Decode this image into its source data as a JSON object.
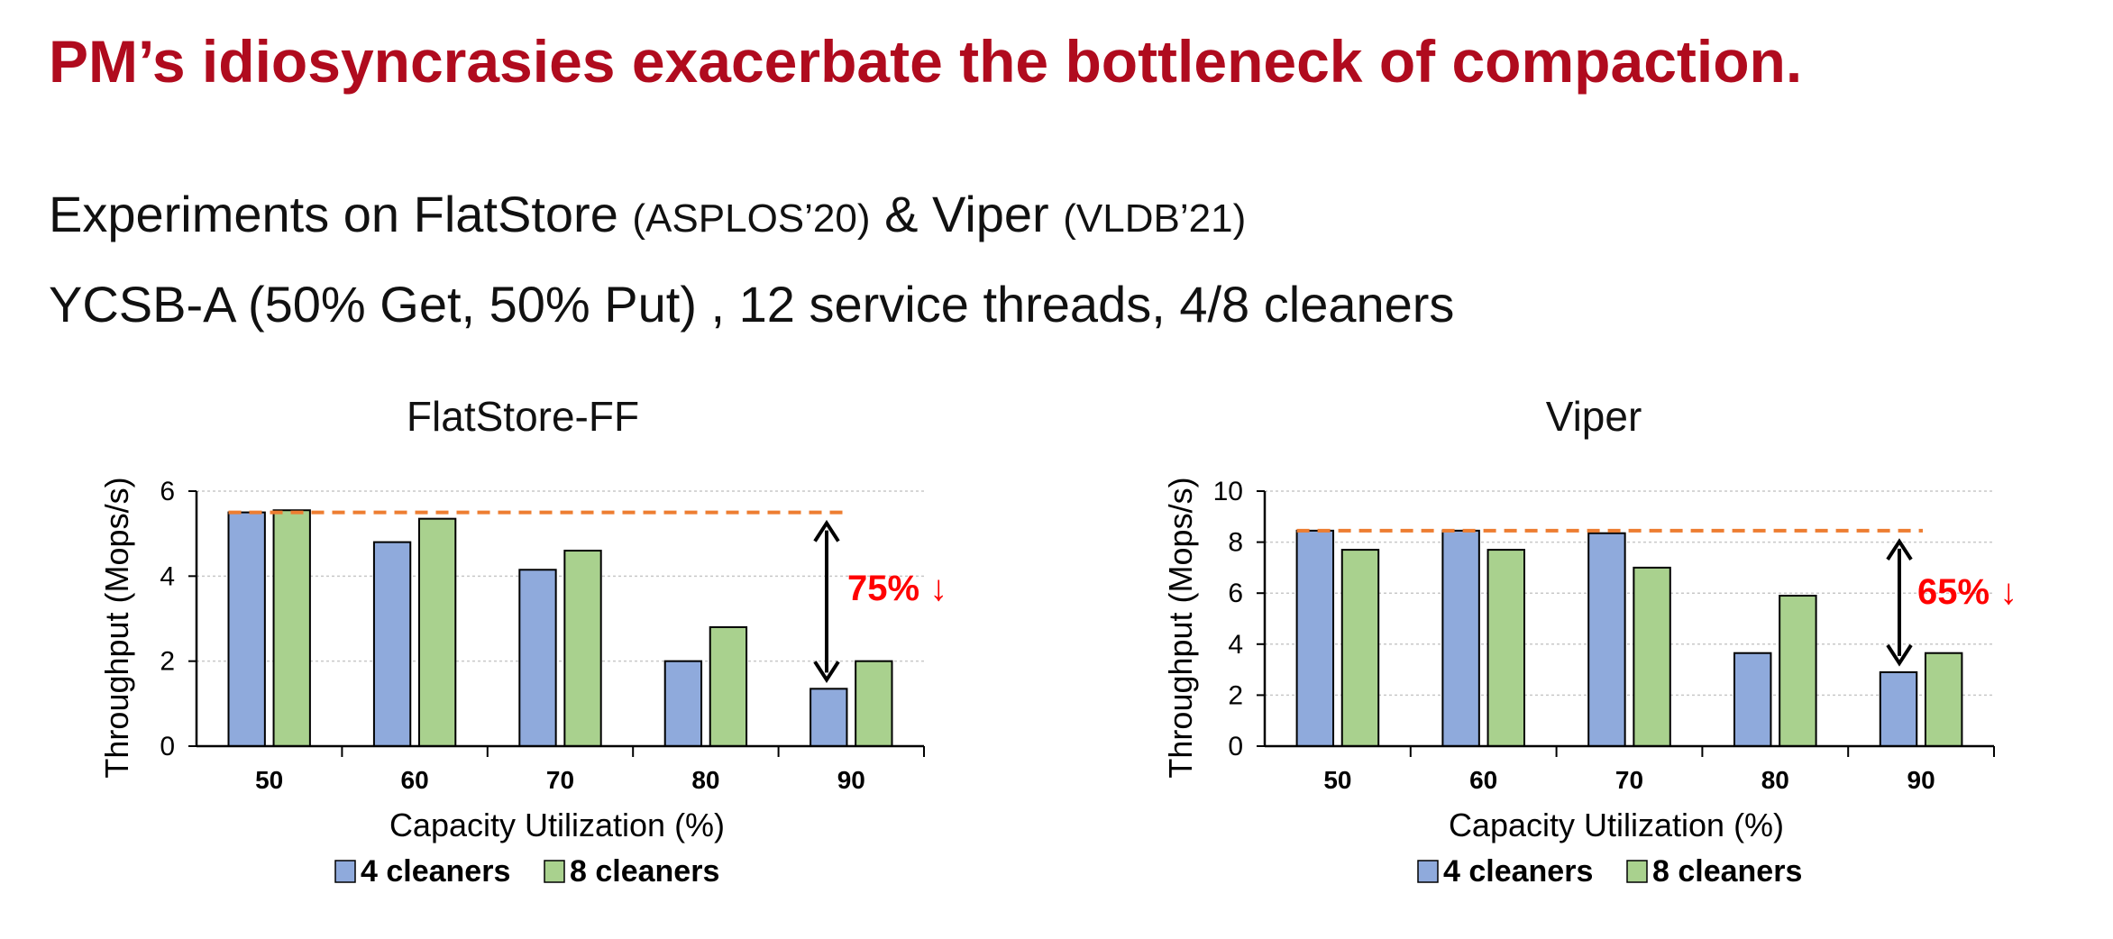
{
  "slide": {
    "title": "PM’s idiosyncrasies exacerbate the bottleneck of compaction.",
    "line1": {
      "main": "Experiments on FlatStore",
      "cite1": "(ASPLOS’20)",
      "mid": "& Viper",
      "cite2": "(VLDB’21)"
    },
    "line2": "YCSB-A (50% Get, 50% Put) , 12 service threads, 4/8 cleaners"
  },
  "colors": {
    "title": "#b00b1e",
    "series_4": "#8faadc",
    "series_8": "#a9d18e",
    "reference_line": "#ed7d31",
    "annotation": "#ff0000"
  },
  "chart_data": [
    {
      "type": "bar",
      "title": "FlatStore-FF",
      "xlabel": "Capacity Utilization (%)",
      "ylabel": "Throughput (Mops/s)",
      "categories": [
        "50",
        "60",
        "70",
        "80",
        "90"
      ],
      "ylim": [
        0,
        6
      ],
      "yticks": [
        0,
        2,
        4,
        6
      ],
      "grid": true,
      "legend": "bottom",
      "series": [
        {
          "name": "4 cleaners",
          "values": [
            5.5,
            4.8,
            4.15,
            2.0,
            1.35
          ]
        },
        {
          "name": "8 cleaners",
          "values": [
            5.55,
            5.35,
            4.6,
            2.8,
            2.0
          ]
        }
      ],
      "reference_line": 5.5,
      "annotation": {
        "text": "75%",
        "arrow": "↓",
        "from": 5.5,
        "to": 1.35
      }
    },
    {
      "type": "bar",
      "title": "Viper",
      "xlabel": "Capacity Utilization (%)",
      "ylabel": "Throughput (Mops/s)",
      "categories": [
        "50",
        "60",
        "70",
        "80",
        "90"
      ],
      "ylim": [
        0,
        10
      ],
      "yticks": [
        0,
        2,
        4,
        6,
        8,
        10
      ],
      "grid": true,
      "legend": "bottom",
      "series": [
        {
          "name": "4 cleaners",
          "values": [
            8.45,
            8.45,
            8.35,
            3.65,
            2.9
          ]
        },
        {
          "name": "8 cleaners",
          "values": [
            7.7,
            7.7,
            7.0,
            5.9,
            3.65
          ]
        }
      ],
      "reference_line": 8.45,
      "annotation": {
        "text": "65%",
        "arrow": "↓",
        "from": 8.45,
        "to": 2.9
      }
    }
  ]
}
